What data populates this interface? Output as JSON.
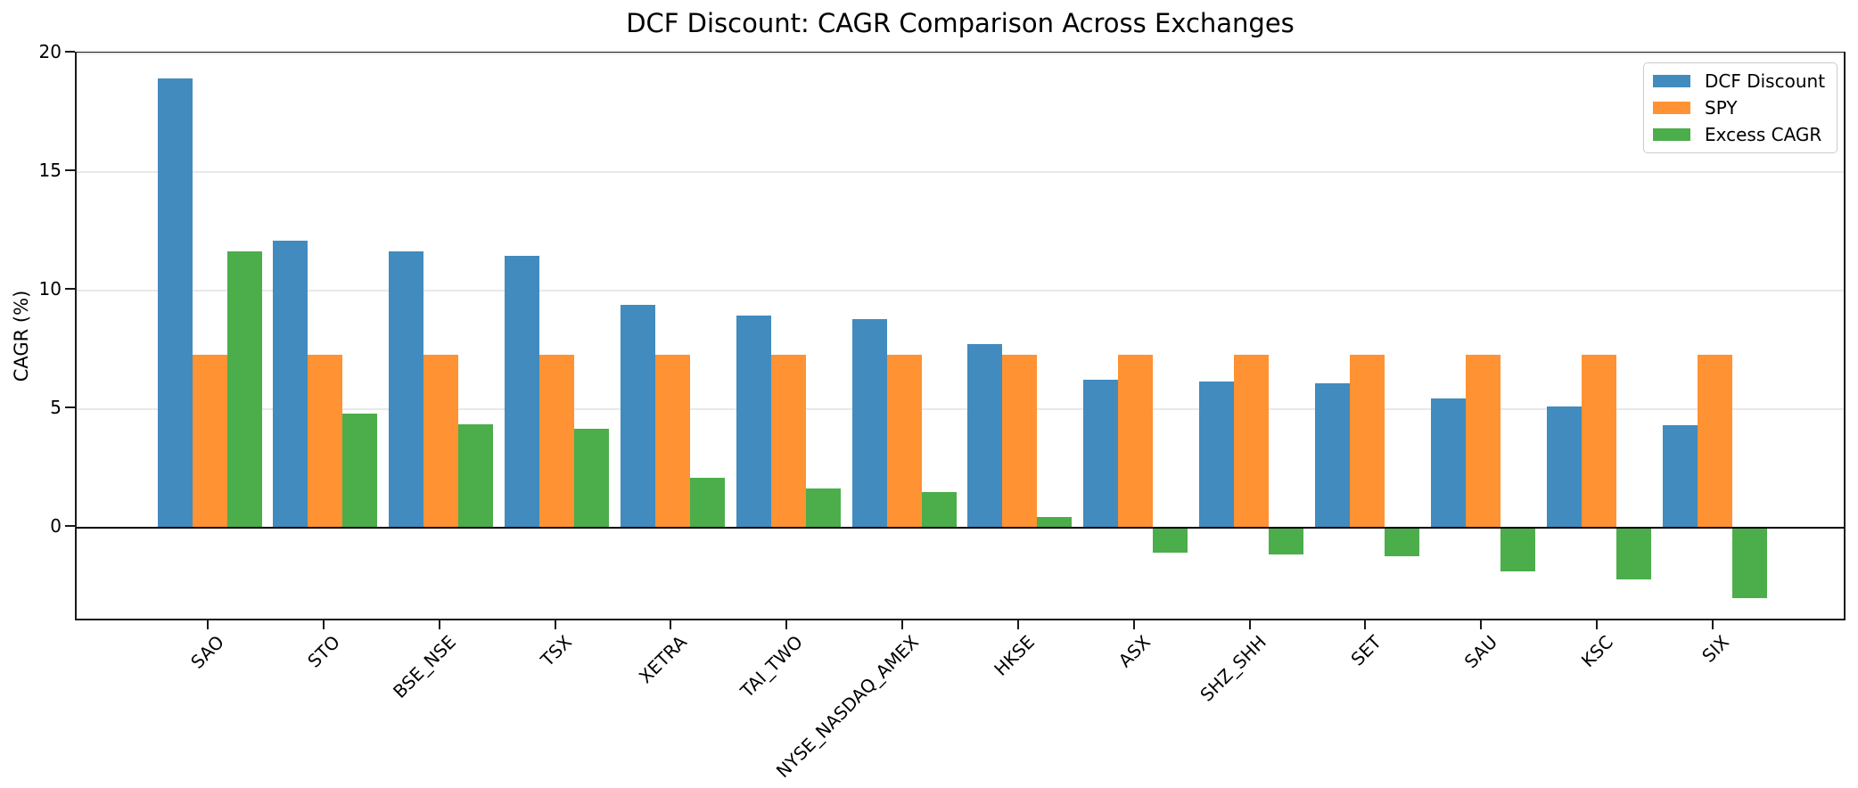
{
  "chart_data": {
    "type": "bar",
    "title": "DCF Discount: CAGR Comparison Across Exchanges",
    "xlabel": "",
    "ylabel": "CAGR (%)",
    "categories": [
      "SAO",
      "STO",
      "BSE_NSE",
      "TSX",
      "XETRA",
      "TAI_TWO",
      "NYSE_NASDAQ_AMEX",
      "HKSE",
      "ASX",
      "SHZ_SHH",
      "SET",
      "SAU",
      "KSC",
      "SIX"
    ],
    "series": [
      {
        "name": "DCF Discount",
        "color": "#418bbf",
        "values": [
          18.95,
          12.1,
          11.65,
          11.45,
          9.4,
          8.95,
          8.8,
          7.75,
          6.25,
          6.15,
          6.1,
          5.45,
          5.1,
          4.3
        ]
      },
      {
        "name": "SPY",
        "color": "#ff9232",
        "values": [
          7.3,
          7.3,
          7.3,
          7.3,
          7.3,
          7.3,
          7.3,
          7.3,
          7.3,
          7.3,
          7.3,
          7.3,
          7.3,
          7.3
        ]
      },
      {
        "name": "Excess CAGR",
        "color": "#4bae4b",
        "values": [
          11.65,
          4.8,
          4.35,
          4.15,
          2.1,
          1.65,
          1.5,
          0.45,
          -1.05,
          -1.15,
          -1.2,
          -1.85,
          -2.2,
          -3.0
        ]
      }
    ],
    "ylim": [
      -4,
      20
    ],
    "yticks": [
      0,
      5,
      10,
      15,
      20
    ],
    "grid": "horizontal",
    "zero_line": true,
    "legend_position": "upper right",
    "tick_label_rotation": 45
  }
}
